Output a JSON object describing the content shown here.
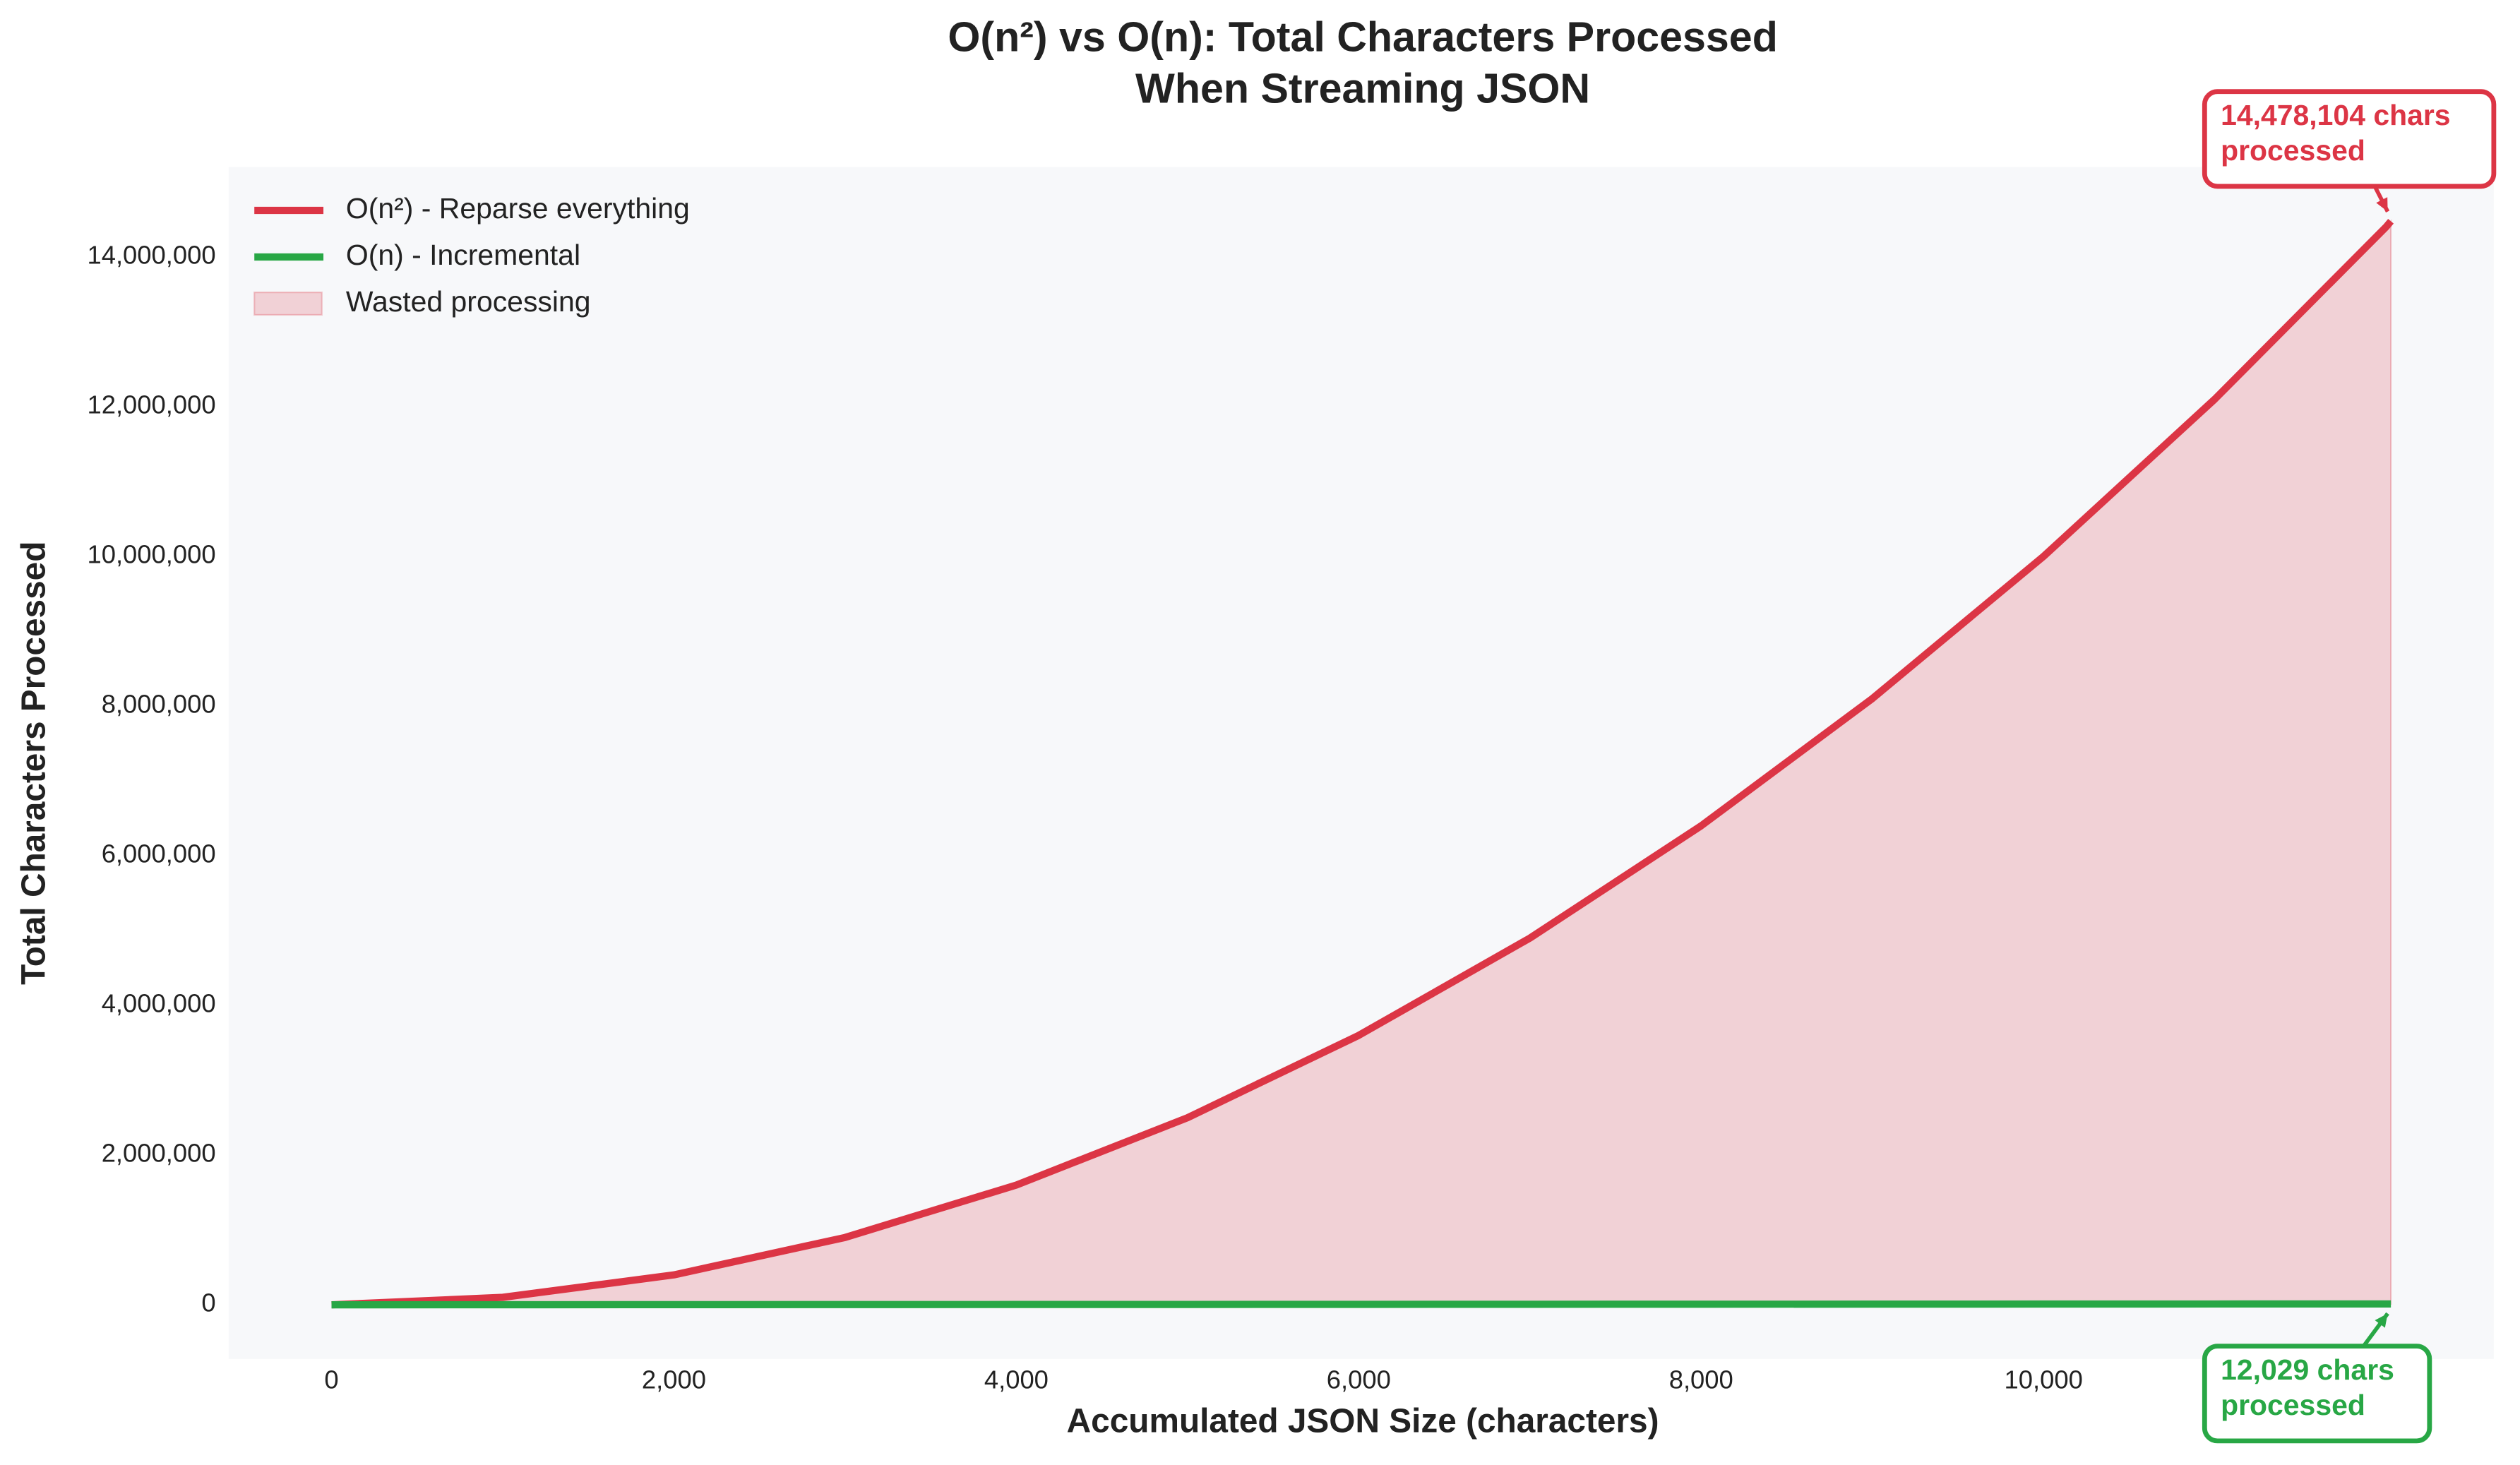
{
  "chart_data": {
    "type": "line",
    "title": [
      "O(n²) vs O(n): Total Characters Processed",
      "When Streaming JSON"
    ],
    "x_label": "Accumulated JSON Size (characters)",
    "y_label": "Total Characters Processed",
    "x": [
      0,
      1000,
      2000,
      3000,
      4000,
      5000,
      6000,
      7000,
      8000,
      9000,
      10000,
      11000,
      12000,
      12029
    ],
    "series": [
      {
        "name": "O(n²) - Reparse everything",
        "color": "#dc3545",
        "values": [
          0,
          100000,
          400000,
          900000,
          1600000,
          2500000,
          3600000,
          4900000,
          6400000,
          8100000,
          10000000,
          12100000,
          14400000,
          14478104
        ]
      },
      {
        "name": "O(n) - Incremental",
        "color": "#28a745",
        "values": [
          0,
          1000,
          2000,
          3000,
          4000,
          5000,
          6000,
          7000,
          8000,
          9000,
          10000,
          11000,
          12000,
          12029
        ]
      }
    ],
    "fill_between": {
      "name": "Wasted processing",
      "color": "#dc3545"
    },
    "annotations": [
      {
        "series": 0,
        "text": [
          "14,478,104 chars",
          "processed"
        ],
        "color": "#dc3545",
        "position": "above"
      },
      {
        "series": 1,
        "text": [
          "12,029 chars",
          "processed"
        ],
        "color": "#28a745",
        "position": "below"
      }
    ],
    "xlim": [
      -601,
      12630
    ],
    "ylim": [
      -723905,
      15202009
    ],
    "xticks": [
      {
        "value": 0,
        "label": "0"
      },
      {
        "value": 2000,
        "label": "2,000"
      },
      {
        "value": 4000,
        "label": "4,000"
      },
      {
        "value": 6000,
        "label": "6,000"
      },
      {
        "value": 8000,
        "label": "8,000"
      },
      {
        "value": 10000,
        "label": "10,000"
      }
    ],
    "yticks": [
      {
        "value": 0,
        "label": "0"
      },
      {
        "value": 2000000,
        "label": "2,000,000"
      },
      {
        "value": 4000000,
        "label": "4,000,000"
      },
      {
        "value": 6000000,
        "label": "6,000,000"
      },
      {
        "value": 8000000,
        "label": "8,000,000"
      },
      {
        "value": 10000000,
        "label": "10,000,000"
      },
      {
        "value": 12000000,
        "label": "12,000,000"
      },
      {
        "value": 14000000,
        "label": "14,000,000"
      }
    ],
    "legend": "upper left",
    "grid": false
  }
}
